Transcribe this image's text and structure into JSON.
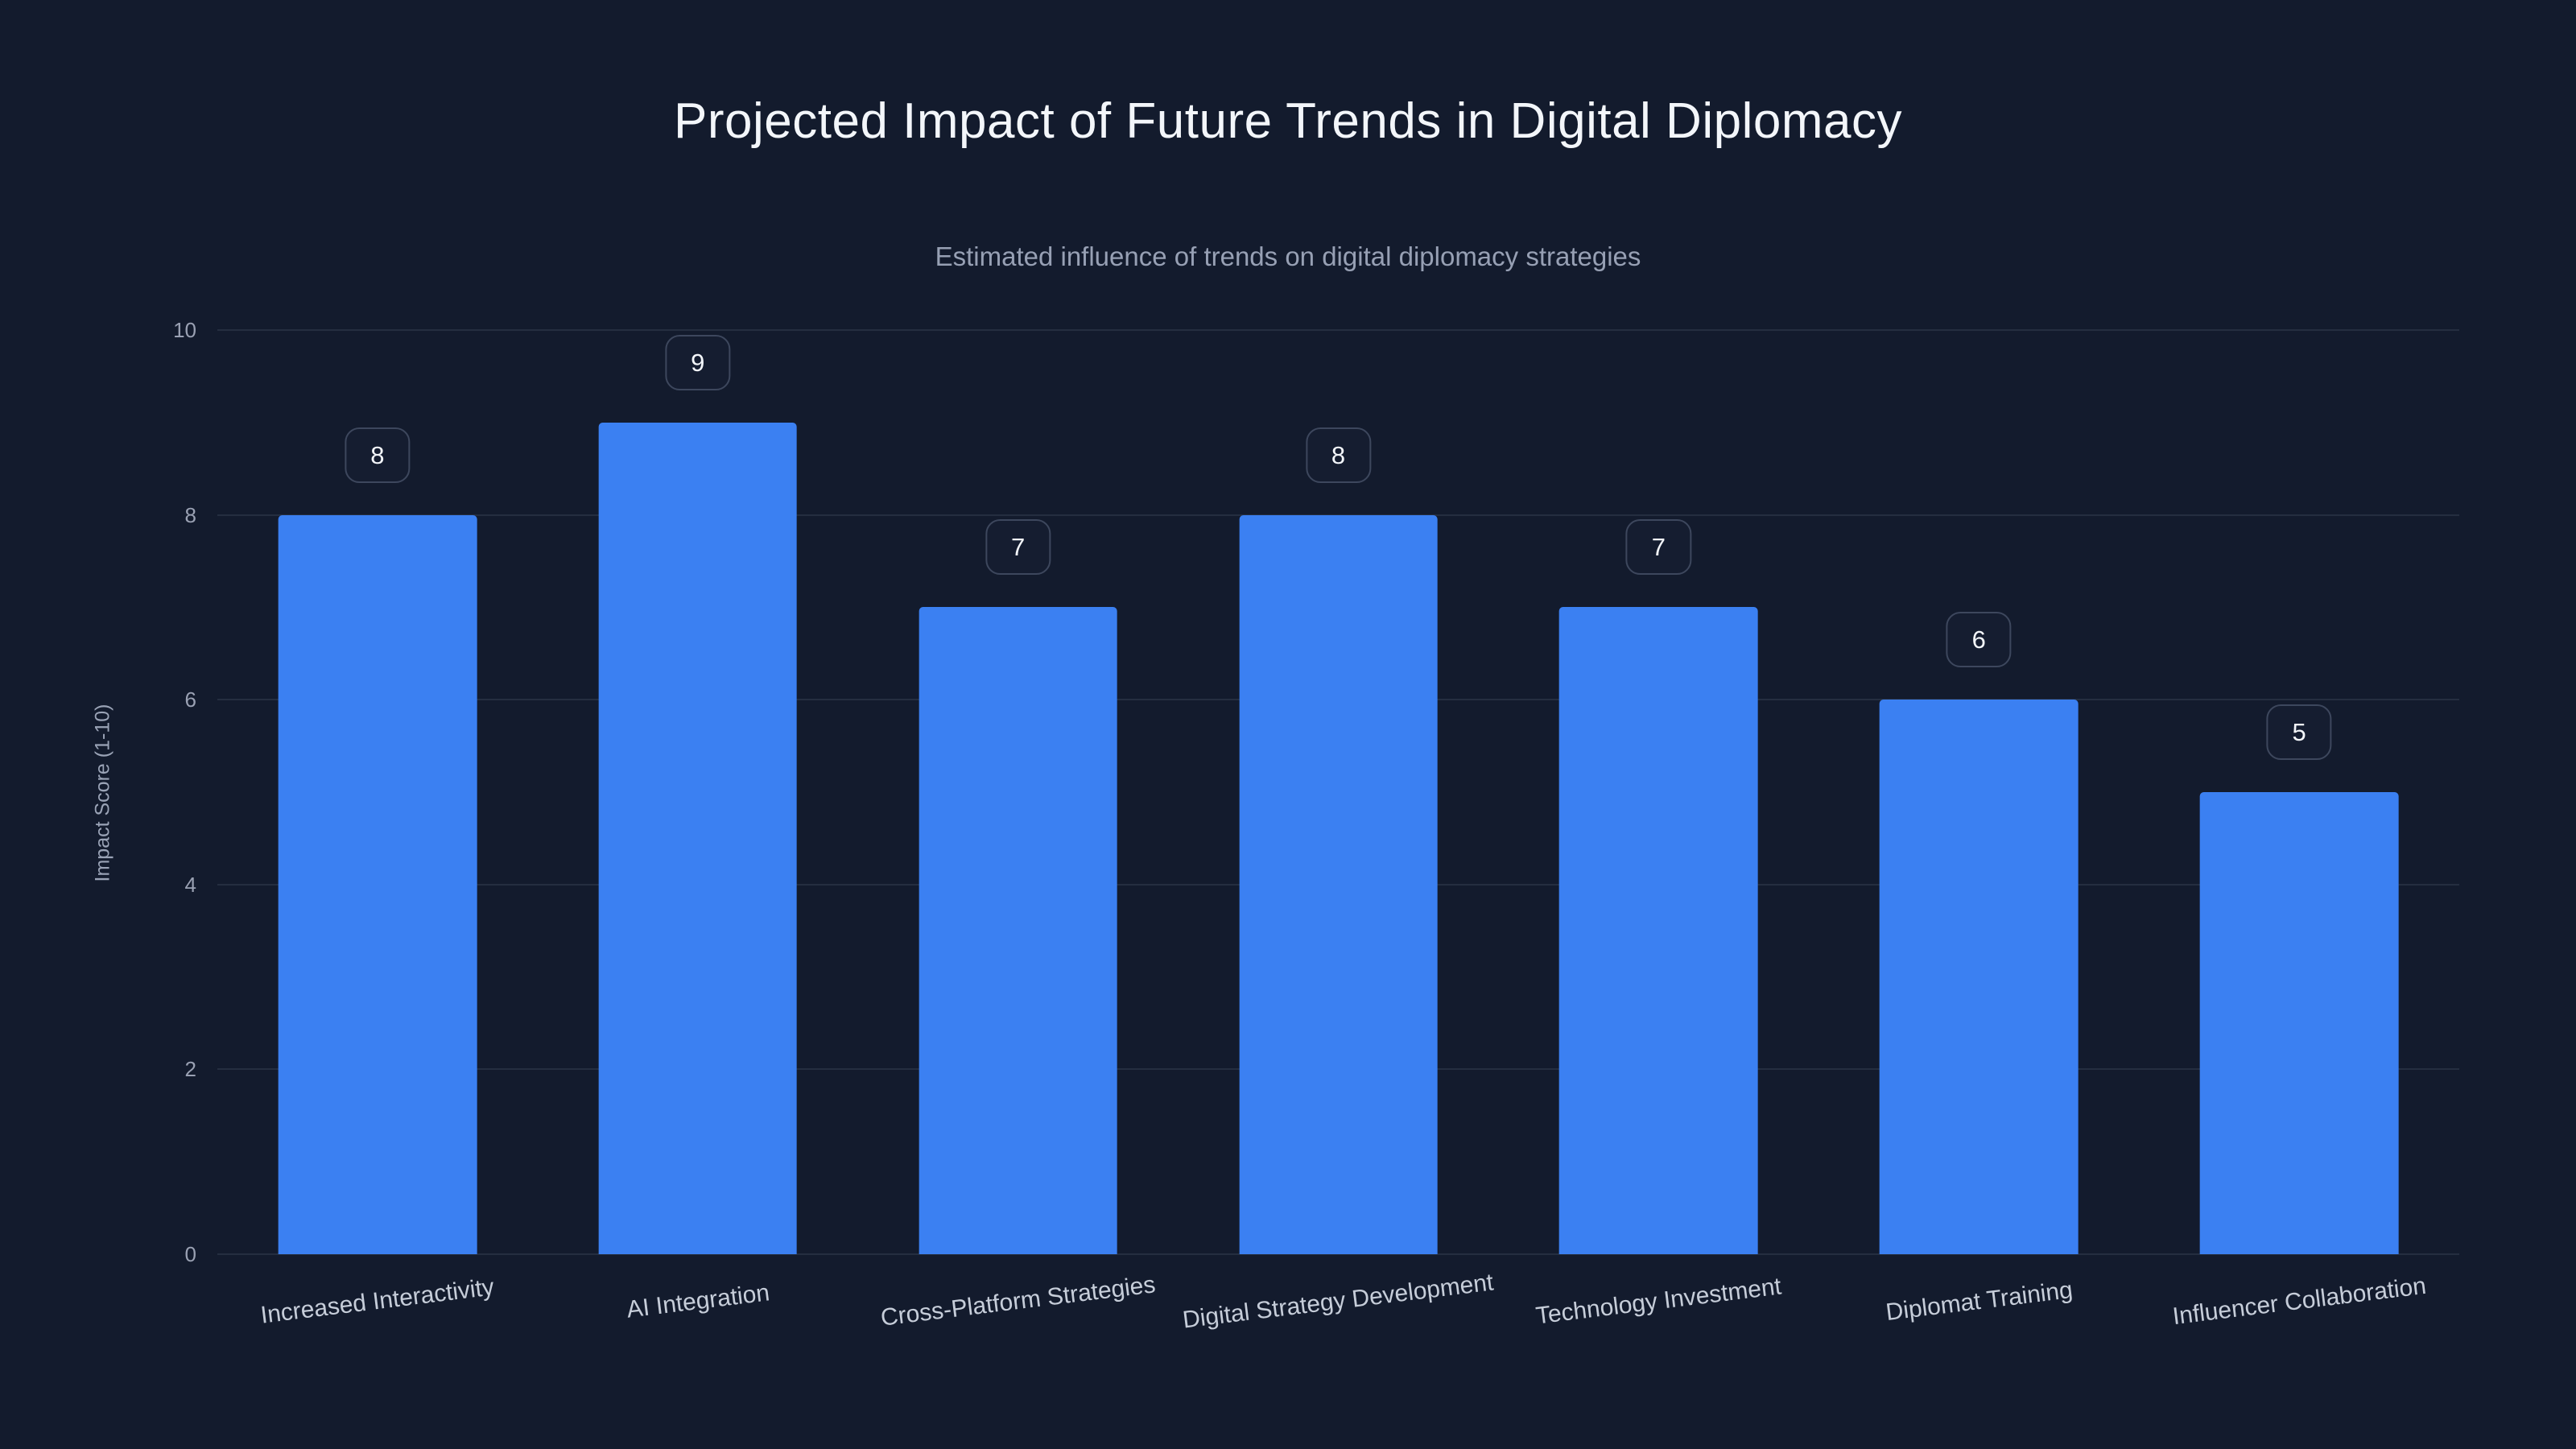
{
  "chart_data": {
    "type": "bar",
    "title": "Projected Impact of Future Trends in Digital Diplomacy",
    "subtitle": "Estimated influence of trends on digital diplomacy strategies",
    "ylabel": "Impact Score (1-10)",
    "xlabel": "",
    "categories": [
      "Increased Interactivity",
      "AI Integration",
      "Cross-Platform Strategies",
      "Digital Strategy Development",
      "Technology Investment",
      "Diplomat Training",
      "Influencer Collaboration"
    ],
    "values": [
      8,
      9,
      7,
      8,
      7,
      6,
      5
    ],
    "ylim": [
      0,
      10
    ],
    "yticks": [
      0,
      2,
      4,
      6,
      8,
      10
    ],
    "grid": "on",
    "legend": "none",
    "bar_color": "#3b80f2",
    "background_color": "#131b2d",
    "data_labels": "badges above bars"
  }
}
